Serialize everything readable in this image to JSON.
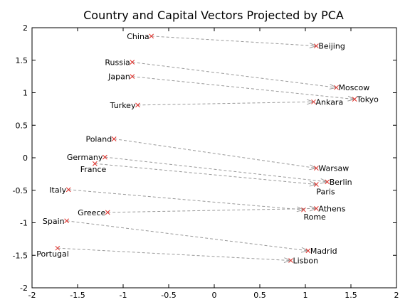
{
  "chart_data": {
    "type": "scatter",
    "title": "Country and Capital Vectors Projected by PCA",
    "xlim": [
      -2,
      2
    ],
    "ylim": [
      -2,
      2
    ],
    "x_ticks": [
      "-2",
      "-1.5",
      "-1",
      "-0.5",
      "0",
      "0.5",
      "1",
      "1.5",
      "2"
    ],
    "y_ticks": [
      "-2",
      "-1.5",
      "-1",
      "-0.5",
      "0",
      "0.5",
      "1",
      "1.5",
      "2"
    ],
    "x_tick_values": [
      -2,
      -1.5,
      -1,
      -0.5,
      0,
      0.5,
      1,
      1.5,
      2
    ],
    "y_tick_values": [
      -2,
      -1.5,
      -1,
      -0.5,
      0,
      0.5,
      1,
      1.5,
      2
    ],
    "grid": false,
    "marker_color": "#e0302a",
    "arrow_color": "#9a9a9a",
    "points": [
      {
        "label": "China",
        "x": -0.69,
        "y": 1.87,
        "align": "end"
      },
      {
        "label": "Beijing",
        "x": 1.12,
        "y": 1.72,
        "align": "start"
      },
      {
        "label": "Russia",
        "x": -0.9,
        "y": 1.47,
        "align": "end"
      },
      {
        "label": "Japan",
        "x": -0.9,
        "y": 1.25,
        "align": "end"
      },
      {
        "label": "Moscow",
        "x": 1.34,
        "y": 1.08,
        "align": "start"
      },
      {
        "label": "Tokyo",
        "x": 1.54,
        "y": 0.9,
        "align": "start"
      },
      {
        "label": "Turkey",
        "x": -0.84,
        "y": 0.81,
        "align": "end"
      },
      {
        "label": "Ankara",
        "x": 1.09,
        "y": 0.86,
        "align": "start"
      },
      {
        "label": "Poland",
        "x": -1.1,
        "y": 0.29,
        "align": "end"
      },
      {
        "label": "Germany",
        "x": -1.2,
        "y": 0.01,
        "align": "end"
      },
      {
        "label": "France",
        "x": -1.31,
        "y": -0.09,
        "align": "end-below"
      },
      {
        "label": "Warsaw",
        "x": 1.12,
        "y": -0.16,
        "align": "start"
      },
      {
        "label": "Berlin",
        "x": 1.24,
        "y": -0.37,
        "align": "start"
      },
      {
        "label": "Paris",
        "x": 1.12,
        "y": -0.41,
        "align": "start-below"
      },
      {
        "label": "Italy",
        "x": -1.6,
        "y": -0.49,
        "align": "end"
      },
      {
        "label": "Greece",
        "x": -1.17,
        "y": -0.84,
        "align": "end"
      },
      {
        "label": "Athens",
        "x": 1.12,
        "y": -0.78,
        "align": "start"
      },
      {
        "label": "Rome",
        "x": 0.98,
        "y": -0.8,
        "align": "start-below"
      },
      {
        "label": "Spain",
        "x": -1.62,
        "y": -0.97,
        "align": "end"
      },
      {
        "label": "Madrid",
        "x": 1.03,
        "y": -1.43,
        "align": "start"
      },
      {
        "label": "Portugal",
        "x": -1.72,
        "y": -1.39,
        "align": "end-below"
      },
      {
        "label": "Lisbon",
        "x": 0.84,
        "y": -1.58,
        "align": "start"
      }
    ],
    "arrows": [
      {
        "from": "China",
        "to": "Beijing"
      },
      {
        "from": "Russia",
        "to": "Moscow"
      },
      {
        "from": "Japan",
        "to": "Tokyo"
      },
      {
        "from": "Turkey",
        "to": "Ankara"
      },
      {
        "from": "Poland",
        "to": "Warsaw"
      },
      {
        "from": "Germany",
        "to": "Berlin"
      },
      {
        "from": "France",
        "to": "Paris"
      },
      {
        "from": "Italy",
        "to": "Rome"
      },
      {
        "from": "Greece",
        "to": "Athens"
      },
      {
        "from": "Spain",
        "to": "Madrid"
      },
      {
        "from": "Portugal",
        "to": "Lisbon"
      }
    ]
  }
}
